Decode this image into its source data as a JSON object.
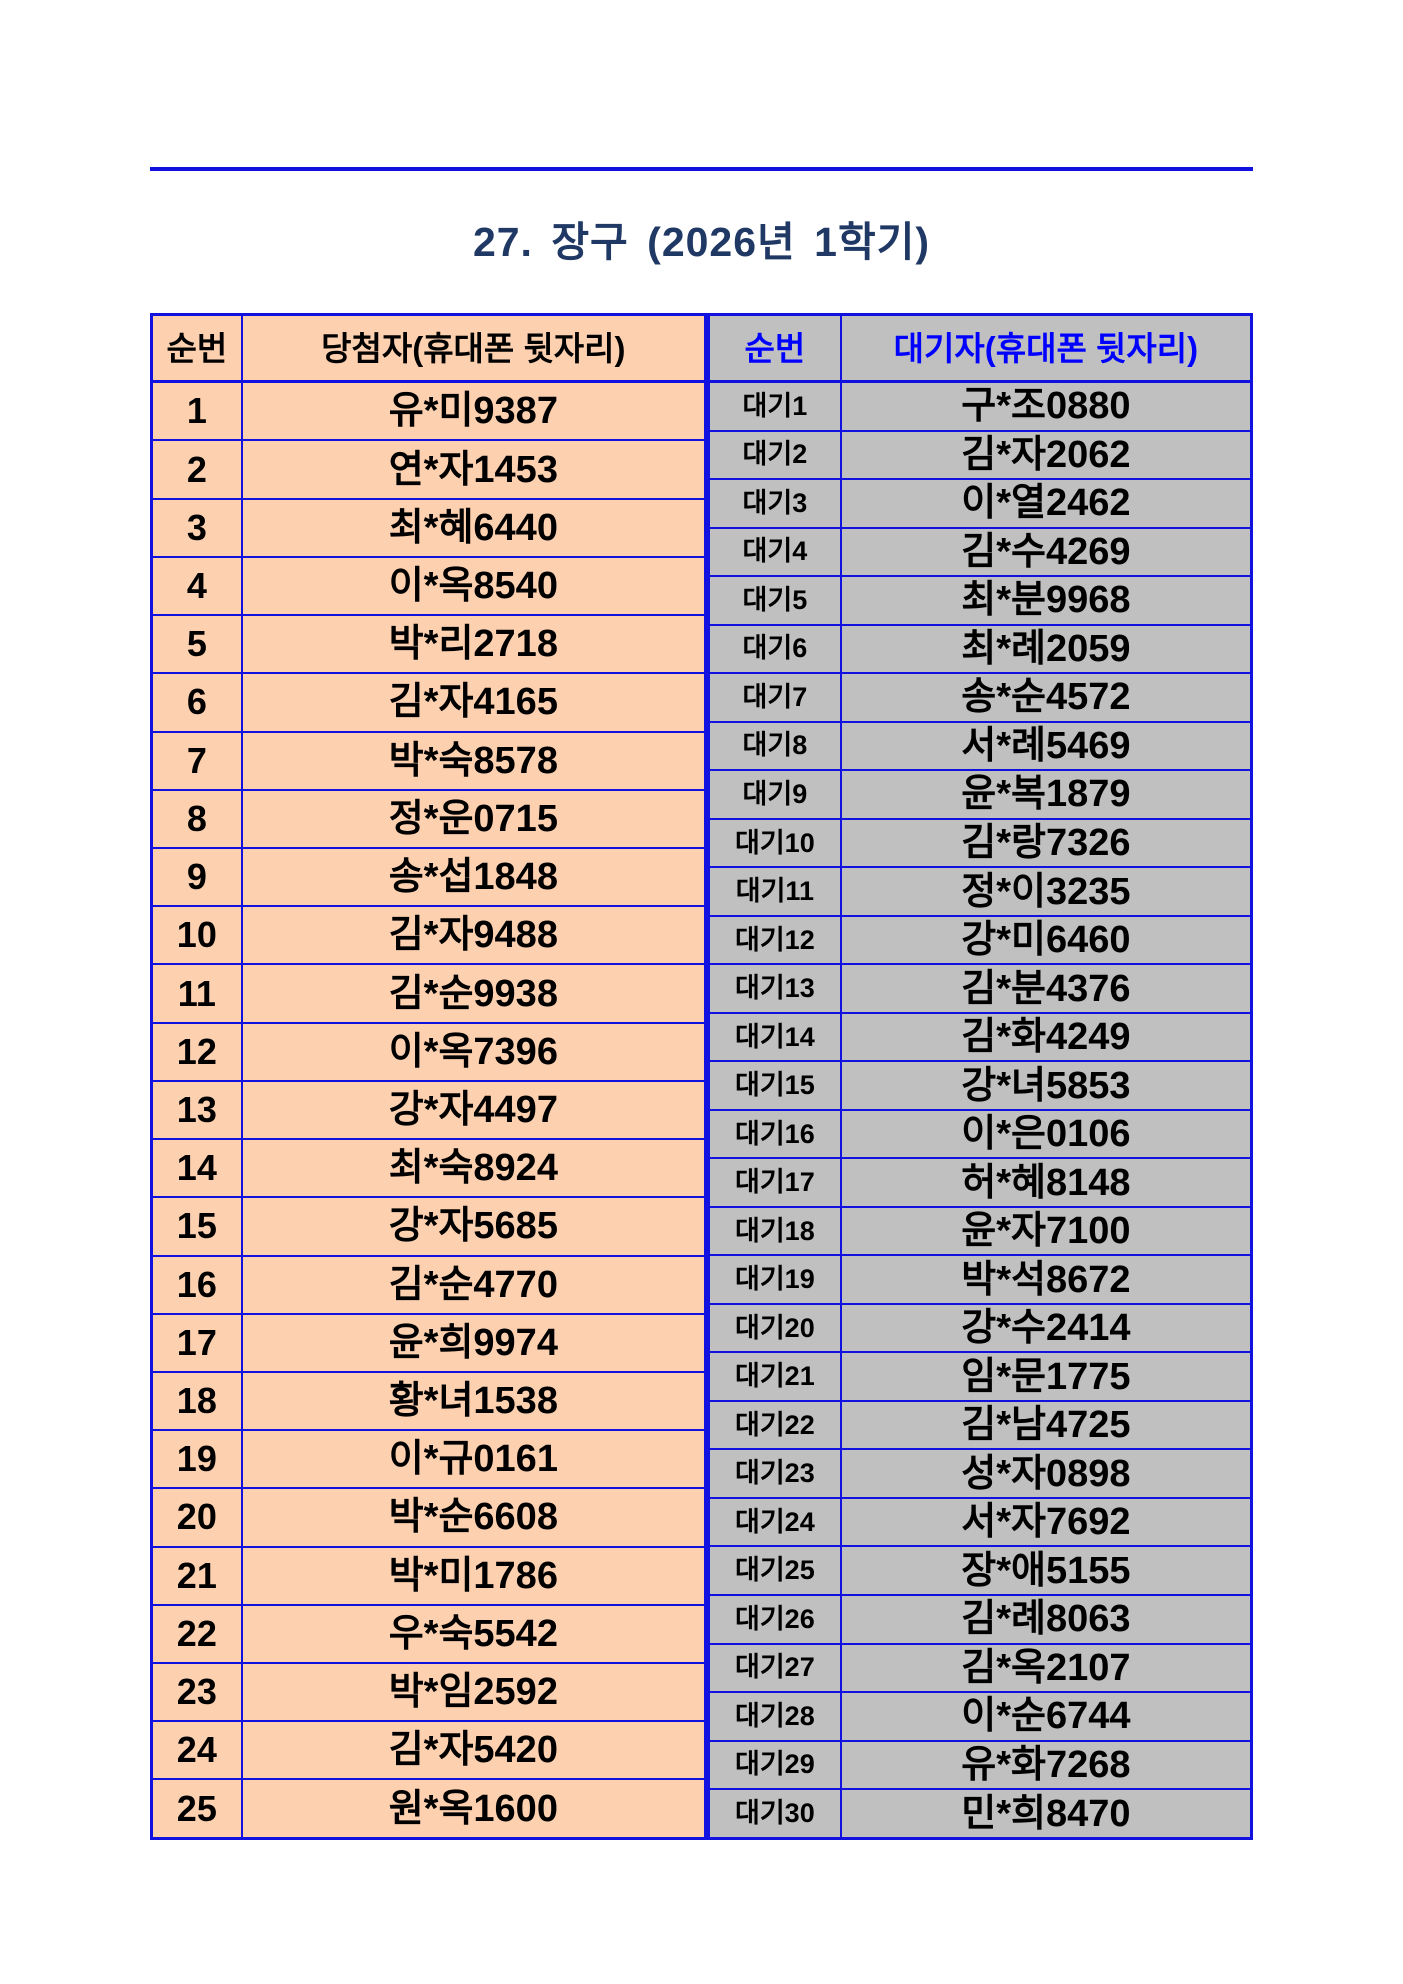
{
  "page": {
    "title": "27. 장구  (2026년  1학기)"
  },
  "colors": {
    "border_blue": "#1212E0",
    "title_navy": "#1F3864",
    "winner_bg": "#FDD0B0",
    "wait_bg": "#C0C0C0",
    "winner_header_text": "#000000",
    "wait_header_text": "#0000FF",
    "cell_text": "#000000"
  },
  "winner_table": {
    "headers": [
      "순번",
      "당첨자(휴대폰 뒷자리)"
    ],
    "rows": [
      [
        "1",
        "유*미9387"
      ],
      [
        "2",
        "연*자1453"
      ],
      [
        "3",
        "최*혜6440"
      ],
      [
        "4",
        "이*옥8540"
      ],
      [
        "5",
        "박*리2718"
      ],
      [
        "6",
        "김*자4165"
      ],
      [
        "7",
        "박*숙8578"
      ],
      [
        "8",
        "정*운0715"
      ],
      [
        "9",
        "송*섭1848"
      ],
      [
        "10",
        "김*자9488"
      ],
      [
        "11",
        "김*순9938"
      ],
      [
        "12",
        "이*옥7396"
      ],
      [
        "13",
        "강*자4497"
      ],
      [
        "14",
        "최*숙8924"
      ],
      [
        "15",
        "강*자5685"
      ],
      [
        "16",
        "김*순4770"
      ],
      [
        "17",
        "윤*희9974"
      ],
      [
        "18",
        "황*녀1538"
      ],
      [
        "19",
        "이*규0161"
      ],
      [
        "20",
        "박*순6608"
      ],
      [
        "21",
        "박*미1786"
      ],
      [
        "22",
        "우*숙5542"
      ],
      [
        "23",
        "박*임2592"
      ],
      [
        "24",
        "김*자5420"
      ],
      [
        "25",
        "원*옥1600"
      ]
    ]
  },
  "wait_table": {
    "headers": [
      "순번",
      "대기자(휴대폰 뒷자리)"
    ],
    "rows": [
      [
        "대기1",
        "구*조0880"
      ],
      [
        "대기2",
        "김*자2062"
      ],
      [
        "대기3",
        "이*열2462"
      ],
      [
        "대기4",
        "김*수4269"
      ],
      [
        "대기5",
        "최*분9968"
      ],
      [
        "대기6",
        "최*례2059"
      ],
      [
        "대기7",
        "송*순4572"
      ],
      [
        "대기8",
        "서*례5469"
      ],
      [
        "대기9",
        "윤*복1879"
      ],
      [
        "대기10",
        "김*랑7326"
      ],
      [
        "대기11",
        "정*이3235"
      ],
      [
        "대기12",
        "강*미6460"
      ],
      [
        "대기13",
        "김*분4376"
      ],
      [
        "대기14",
        "김*화4249"
      ],
      [
        "대기15",
        "강*녀5853"
      ],
      [
        "대기16",
        "이*은0106"
      ],
      [
        "대기17",
        "허*혜8148"
      ],
      [
        "대기18",
        "윤*자7100"
      ],
      [
        "대기19",
        "박*석8672"
      ],
      [
        "대기20",
        "강*수2414"
      ],
      [
        "대기21",
        "임*문1775"
      ],
      [
        "대기22",
        "김*남4725"
      ],
      [
        "대기23",
        "성*자0898"
      ],
      [
        "대기24",
        "서*자7692"
      ],
      [
        "대기25",
        "장*애5155"
      ],
      [
        "대기26",
        "김*례8063"
      ],
      [
        "대기27",
        "김*옥2107"
      ],
      [
        "대기28",
        "이*순6744"
      ],
      [
        "대기29",
        "유*화7268"
      ],
      [
        "대기30",
        "민*희8470"
      ]
    ]
  }
}
